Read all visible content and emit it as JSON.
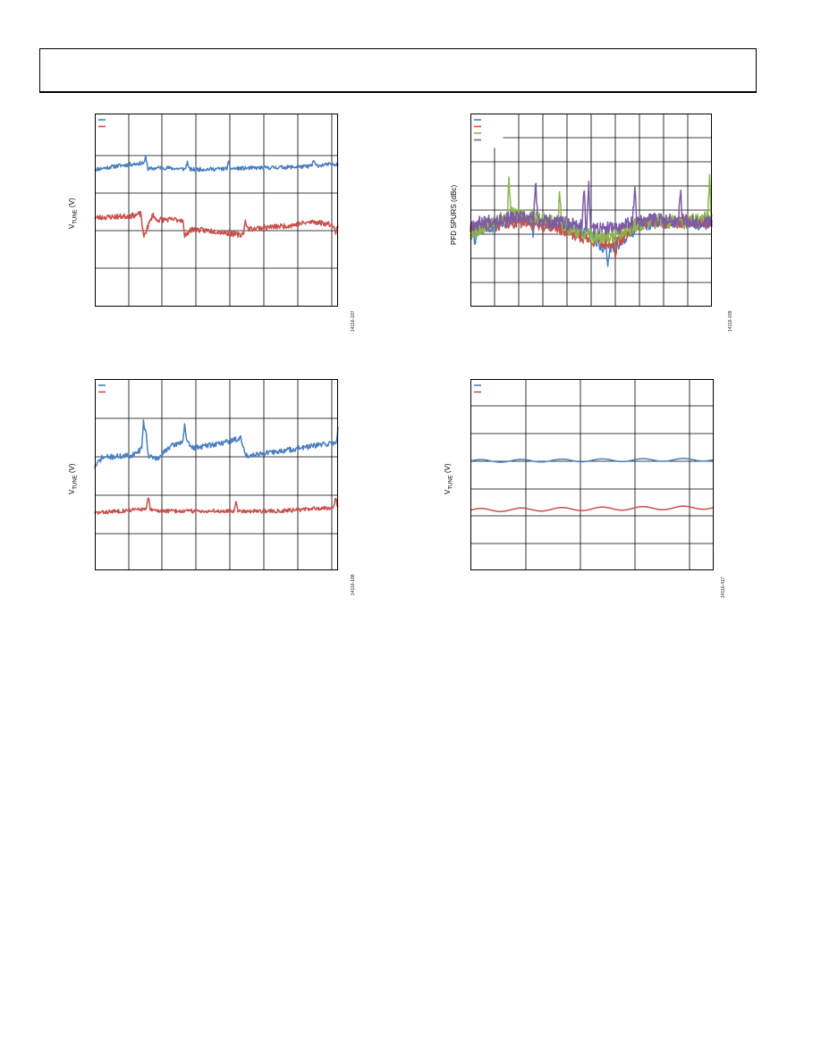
{
  "header": {
    "title": ""
  },
  "colors": {
    "blue": "#4a7ebf",
    "red": "#c8504b",
    "green": "#8db54e",
    "purple": "#7d5ba6",
    "grid": "#000000"
  },
  "chart_data": [
    {
      "type": "line",
      "title": "",
      "ylabel_main": "V",
      "ylabel_sub": "TUNE",
      "ylabel_tail": " (V)",
      "figure_id": "14116-187",
      "grid": true,
      "legend_position": "top-left",
      "ylim": [
        0,
        5
      ],
      "xlim": [
        0,
        100
      ],
      "series": [
        {
          "color": "blue",
          "seed": 11,
          "noise": 0.05,
          "segments": [
            [
              0,
              3.55
            ],
            [
              10,
              3.65
            ],
            [
              20,
              3.72
            ],
            [
              21,
              3.55
            ],
            [
              27,
              3.6
            ],
            [
              40,
              3.55
            ],
            [
              60,
              3.58
            ],
            [
              85,
              3.62
            ],
            [
              100,
              3.7
            ]
          ],
          "spikes": [
            [
              21,
              0.35
            ],
            [
              38,
              0.2
            ],
            [
              55,
              0.15
            ],
            [
              90,
              0.15
            ]
          ]
        },
        {
          "color": "red",
          "seed": 23,
          "noise": 0.07,
          "segments": [
            [
              0,
              2.3
            ],
            [
              15,
              2.35
            ],
            [
              19,
              2.4
            ],
            [
              20,
              1.8
            ],
            [
              24,
              2.4
            ],
            [
              25,
              2.25
            ],
            [
              36,
              2.25
            ],
            [
              38,
              1.9
            ],
            [
              40,
              2.0
            ],
            [
              50,
              1.95
            ],
            [
              60,
              1.85
            ],
            [
              62,
              2.0
            ],
            [
              70,
              2.05
            ],
            [
              80,
              2.1
            ],
            [
              90,
              2.2
            ],
            [
              100,
              2.1
            ]
          ],
          "spikes": [
            [
              37,
              -0.3
            ],
            [
              62,
              0.25
            ],
            [
              99,
              -0.25
            ]
          ]
        }
      ]
    },
    {
      "type": "line",
      "title": "",
      "ylabel_main": "PFD SPURS (dBc)",
      "ylabel_sub": "",
      "ylabel_tail": "",
      "figure_id": "14116-189",
      "grid": true,
      "legend_position": "top-left",
      "ylim": [
        0,
        8
      ],
      "xlim": [
        0,
        100
      ],
      "series": [
        {
          "color": "blue",
          "seed": 31,
          "noise": 0.25,
          "segments": [
            [
              0,
              3.1
            ],
            [
              10,
              3.3
            ],
            [
              20,
              3.6
            ],
            [
              30,
              3.5
            ],
            [
              40,
              3.3
            ],
            [
              50,
              3.0
            ],
            [
              55,
              2.4
            ],
            [
              60,
              2.5
            ],
            [
              65,
              2.9
            ],
            [
              70,
              3.4
            ],
            [
              85,
              3.5
            ],
            [
              100,
              3.4
            ]
          ],
          "spikes": [
            [
              2,
              -0.5
            ],
            [
              26,
              -0.6
            ],
            [
              57,
              -0.8
            ]
          ]
        },
        {
          "color": "red",
          "seed": 41,
          "noise": 0.25,
          "segments": [
            [
              0,
              3.2
            ],
            [
              10,
              3.4
            ],
            [
              20,
              3.5
            ],
            [
              35,
              3.3
            ],
            [
              45,
              2.9
            ],
            [
              55,
              2.6
            ],
            [
              62,
              2.7
            ],
            [
              68,
              3.4
            ],
            [
              80,
              3.5
            ],
            [
              100,
              3.5
            ]
          ],
          "spikes": [
            [
              20,
              0.6
            ],
            [
              60,
              -0.6
            ]
          ]
        },
        {
          "color": "green",
          "seed": 53,
          "noise": 0.3,
          "segments": [
            [
              0,
              3.0
            ],
            [
              10,
              3.6
            ],
            [
              20,
              3.9
            ],
            [
              35,
              3.5
            ],
            [
              45,
              3.1
            ],
            [
              50,
              2.9
            ],
            [
              58,
              2.9
            ],
            [
              65,
              3.2
            ],
            [
              75,
              3.6
            ],
            [
              88,
              3.5
            ],
            [
              100,
              3.7
            ]
          ],
          "spikes": [
            [
              16,
              1.4
            ],
            [
              37,
              1.3
            ],
            [
              99,
              1.6
            ]
          ]
        },
        {
          "color": "purple",
          "seed": 67,
          "noise": 0.28,
          "segments": [
            [
              0,
              3.4
            ],
            [
              10,
              3.6
            ],
            [
              20,
              3.7
            ],
            [
              35,
              3.5
            ],
            [
              45,
              3.4
            ],
            [
              55,
              3.2
            ],
            [
              62,
              3.3
            ],
            [
              70,
              3.6
            ],
            [
              85,
              3.6
            ],
            [
              100,
              3.5
            ]
          ],
          "spikes": [
            [
              27,
              1.6
            ],
            [
              47,
              1.8
            ],
            [
              49,
              1.7
            ],
            [
              68,
              1.6
            ],
            [
              87,
              1.4
            ]
          ]
        }
      ]
    },
    {
      "type": "line",
      "title": "",
      "ylabel_main": "V",
      "ylabel_sub": "TUNE",
      "ylabel_tail": " (V)",
      "figure_id": "14116-188",
      "grid": true,
      "legend_position": "top-left",
      "ylim": [
        0,
        5
      ],
      "xlim": [
        0,
        100
      ],
      "series": [
        {
          "color": "blue",
          "seed": 71,
          "noise": 0.07,
          "segments": [
            [
              0,
              2.7
            ],
            [
              3,
              2.95
            ],
            [
              15,
              3.0
            ],
            [
              20,
              3.2
            ],
            [
              21,
              3.7
            ],
            [
              22,
              3.0
            ],
            [
              26,
              2.9
            ],
            [
              30,
              3.2
            ],
            [
              37,
              3.4
            ],
            [
              40,
              3.2
            ],
            [
              50,
              3.3
            ],
            [
              60,
              3.45
            ],
            [
              62,
              3.0
            ],
            [
              75,
              3.1
            ],
            [
              85,
              3.2
            ],
            [
              100,
              3.35
            ]
          ],
          "spikes": [
            [
              20,
              0.7
            ],
            [
              37,
              0.45
            ],
            [
              100,
              0.35
            ]
          ]
        },
        {
          "color": "red",
          "seed": 83,
          "noise": 0.05,
          "segments": [
            [
              0,
              1.5
            ],
            [
              20,
              1.6
            ],
            [
              27,
              1.55
            ],
            [
              50,
              1.55
            ],
            [
              75,
              1.55
            ],
            [
              100,
              1.65
            ]
          ],
          "spikes": [
            [
              22,
              0.35
            ],
            [
              58,
              0.3
            ],
            [
              99,
              0.25
            ]
          ]
        }
      ]
    },
    {
      "type": "line",
      "title": "",
      "ylabel_main": "V",
      "ylabel_sub": "TUNE",
      "ylabel_tail": " (V)",
      "figure_id": "14116-417",
      "grid": true,
      "legend_position": "top-left",
      "ylim": [
        0,
        7
      ],
      "xlim": [
        0,
        100
      ],
      "series": [
        {
          "color": "blue",
          "seed": 97,
          "noise": 0.0,
          "sine": [
            4.0,
            0.05,
            6
          ],
          "segments": [
            [
              0,
              4.0
            ],
            [
              100,
              4.05
            ]
          ],
          "spikes": []
        },
        {
          "color": "red",
          "seed": 101,
          "noise": 0.0,
          "sine": [
            2.25,
            0.06,
            6
          ],
          "segments": [
            [
              0,
              2.2
            ],
            [
              100,
              2.3
            ]
          ],
          "spikes": []
        }
      ]
    }
  ]
}
